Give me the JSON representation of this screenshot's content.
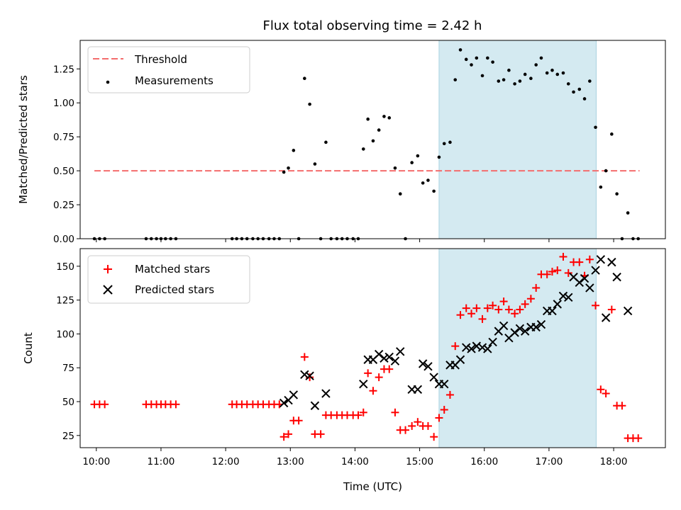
{
  "chart_data": [
    {
      "type": "scatter",
      "title": "Flux total observing time = 2.42 h",
      "ylabel": "Matched/Predicted stars",
      "xlabel": "",
      "xlim": [
        9.75,
        18.8
      ],
      "ylim": [
        0,
        1.46
      ],
      "yticks": [
        0,
        0.25,
        0.5,
        0.75,
        1.0,
        1.25
      ],
      "ytick_labels": [
        "0.00",
        "0.25",
        "0.50",
        "0.75",
        "1.00",
        "1.25"
      ],
      "shaded_span": [
        15.3,
        17.73
      ],
      "shaded_color": "#d4eaf1",
      "threshold": {
        "name": "Threshold",
        "value": 0.5,
        "x_range": [
          9.97,
          18.4
        ],
        "color": "#f46d6d"
      },
      "series": [
        {
          "name": "Measurements",
          "color": "#000000",
          "x": [
            9.97,
            10.05,
            10.13,
            10.77,
            10.85,
            10.93,
            11.0,
            11.07,
            11.15,
            11.23,
            12.1,
            12.17,
            12.25,
            12.33,
            12.42,
            12.5,
            12.58,
            12.67,
            12.75,
            12.83,
            12.9,
            12.97,
            13.05,
            13.13,
            13.22,
            13.3,
            13.38,
            13.47,
            13.55,
            13.63,
            13.72,
            13.8,
            13.88,
            13.97,
            14.05,
            14.13,
            14.2,
            14.28,
            14.37,
            14.45,
            14.53,
            14.62,
            14.7,
            14.78,
            14.88,
            14.97,
            15.05,
            15.13,
            15.22,
            15.3,
            15.38,
            15.47,
            15.55,
            15.63,
            15.72,
            15.8,
            15.88,
            15.97,
            16.05,
            16.13,
            16.22,
            16.3,
            16.38,
            16.47,
            16.55,
            16.63,
            16.72,
            16.8,
            16.88,
            16.97,
            17.05,
            17.13,
            17.22,
            17.3,
            17.38,
            17.47,
            17.55,
            17.63,
            17.72,
            17.8,
            17.88,
            17.97,
            18.05,
            18.13,
            18.22,
            18.3,
            18.38
          ],
          "y": [
            0,
            0,
            0,
            0,
            0,
            0,
            0,
            0,
            0,
            0,
            0,
            0,
            0,
            0,
            0,
            0,
            0,
            0,
            0,
            0,
            0.49,
            0.52,
            0.65,
            0,
            1.18,
            0.99,
            0.55,
            0,
            0.71,
            0,
            0,
            0,
            0,
            0,
            0,
            0.66,
            0.88,
            0.72,
            0.8,
            0.9,
            0.89,
            0.52,
            0.33,
            0,
            0.56,
            0.61,
            0.41,
            0.43,
            0.35,
            0.6,
            0.7,
            0.71,
            1.17,
            1.39,
            1.32,
            1.28,
            1.33,
            1.2,
            1.33,
            1.3,
            1.16,
            1.17,
            1.24,
            1.14,
            1.16,
            1.21,
            1.18,
            1.28,
            1.33,
            1.22,
            1.24,
            1.21,
            1.22,
            1.14,
            1.08,
            1.1,
            1.03,
            1.16,
            0.82,
            0.38,
            0.5,
            0.77,
            0.33,
            0,
            0.19,
            0,
            0
          ]
        }
      ]
    },
    {
      "type": "scatter",
      "title": "",
      "ylabel": "Count",
      "xlabel": "Time (UTC)",
      "xlim": [
        9.75,
        18.8
      ],
      "ylim": [
        16,
        163
      ],
      "xticks": [
        10,
        11,
        12,
        13,
        14,
        15,
        16,
        17,
        18
      ],
      "xtick_labels": [
        "10:00",
        "11:00",
        "12:00",
        "13:00",
        "14:00",
        "15:00",
        "16:00",
        "17:00",
        "18:00"
      ],
      "yticks": [
        25,
        50,
        75,
        100,
        125,
        150
      ],
      "ytick_labels": [
        "25",
        "50",
        "75",
        "100",
        "125",
        "150"
      ],
      "shaded_span": [
        15.3,
        17.73
      ],
      "shaded_color": "#d4eaf1",
      "series": [
        {
          "name": "Matched stars",
          "marker": "+",
          "color": "#ff0000",
          "x": [
            9.97,
            10.05,
            10.13,
            10.77,
            10.85,
            10.93,
            11.0,
            11.07,
            11.15,
            11.23,
            12.1,
            12.17,
            12.25,
            12.33,
            12.42,
            12.5,
            12.58,
            12.67,
            12.75,
            12.83,
            12.9,
            12.97,
            13.05,
            13.13,
            13.22,
            13.3,
            13.38,
            13.47,
            13.55,
            13.63,
            13.72,
            13.8,
            13.88,
            13.97,
            14.05,
            14.13,
            14.2,
            14.28,
            14.37,
            14.45,
            14.53,
            14.62,
            14.7,
            14.78,
            14.88,
            14.97,
            15.05,
            15.13,
            15.22,
            15.3,
            15.38,
            15.47,
            15.55,
            15.63,
            15.72,
            15.8,
            15.88,
            15.97,
            16.05,
            16.13,
            16.22,
            16.3,
            16.38,
            16.47,
            16.55,
            16.63,
            16.72,
            16.8,
            16.88,
            16.97,
            17.05,
            17.13,
            17.22,
            17.3,
            17.38,
            17.47,
            17.55,
            17.63,
            17.72,
            17.8,
            17.88,
            17.97,
            18.05,
            18.13,
            18.22,
            18.3,
            18.38
          ],
          "y": [
            48,
            48,
            48,
            48,
            48,
            48,
            48,
            48,
            48,
            48,
            48,
            48,
            48,
            48,
            48,
            48,
            48,
            48,
            48,
            48,
            24,
            26,
            36,
            36,
            83,
            68,
            26,
            26,
            40,
            40,
            40,
            40,
            40,
            40,
            40,
            42,
            71,
            58,
            68,
            74,
            74,
            42,
            29,
            29,
            32,
            35,
            32,
            32,
            24,
            38,
            44,
            55,
            91,
            114,
            119,
            115,
            119,
            111,
            119,
            121,
            118,
            124,
            118,
            115,
            118,
            122,
            126,
            134,
            144,
            144,
            146,
            147,
            157,
            145,
            153,
            153,
            143,
            155,
            121,
            59,
            56,
            118,
            47,
            47,
            23,
            23,
            23
          ]
        },
        {
          "name": "Predicted stars",
          "marker": "x",
          "color": "#000000",
          "x": [
            12.9,
            12.97,
            13.05,
            13.22,
            13.3,
            13.38,
            13.55,
            14.13,
            14.2,
            14.28,
            14.37,
            14.45,
            14.53,
            14.62,
            14.7,
            14.88,
            14.97,
            15.05,
            15.13,
            15.22,
            15.3,
            15.38,
            15.47,
            15.55,
            15.63,
            15.72,
            15.8,
            15.88,
            15.97,
            16.05,
            16.13,
            16.22,
            16.3,
            16.38,
            16.47,
            16.55,
            16.63,
            16.72,
            16.8,
            16.88,
            16.97,
            17.05,
            17.13,
            17.22,
            17.3,
            17.38,
            17.47,
            17.55,
            17.63,
            17.72,
            17.8,
            17.88,
            17.97,
            18.05,
            18.22
          ],
          "y": [
            49,
            51,
            55,
            70,
            69,
            47,
            56,
            63,
            81,
            81,
            85,
            82,
            83,
            80,
            87,
            59,
            59,
            78,
            76,
            68,
            63,
            63,
            77,
            77,
            81,
            90,
            89,
            91,
            90,
            89,
            94,
            102,
            106,
            97,
            101,
            104,
            102,
            105,
            105,
            107,
            117,
            117,
            122,
            128,
            127,
            142,
            138,
            141,
            134,
            147,
            155,
            112,
            153,
            142,
            117
          ]
        }
      ]
    }
  ]
}
